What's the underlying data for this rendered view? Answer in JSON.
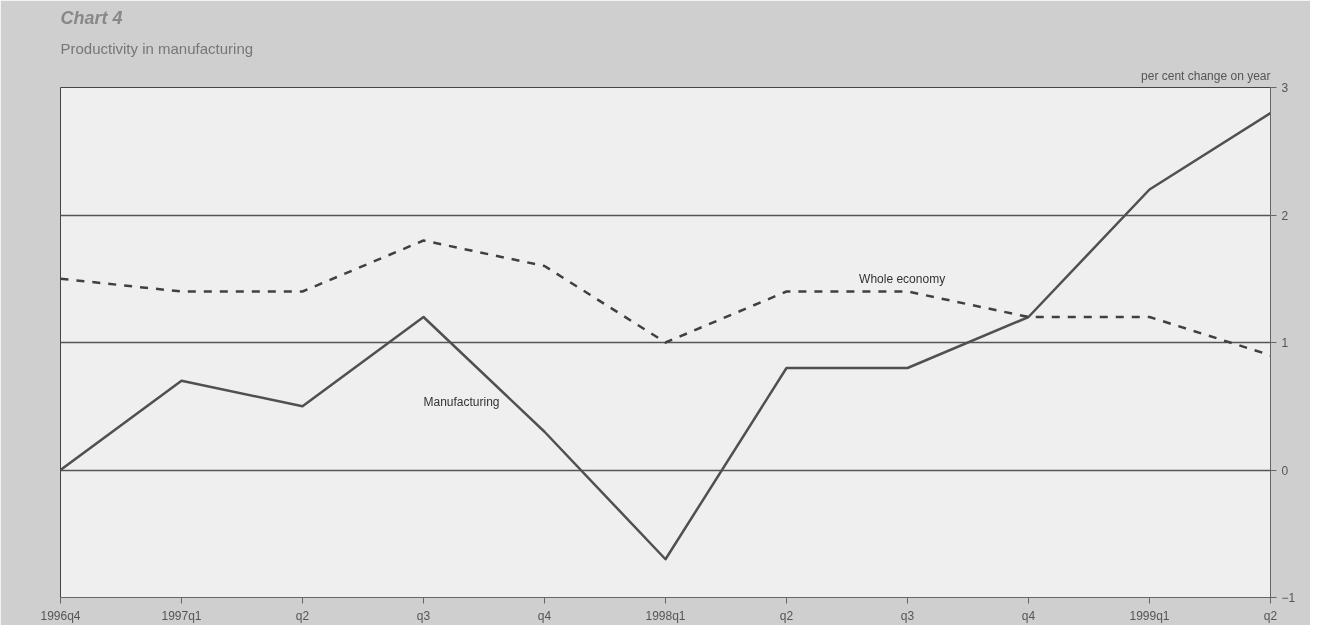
{
  "chart_data": {
    "type": "line",
    "title": "Chart 4",
    "subtitle": "Productivity in manufacturing",
    "ylabel": "per cent change on year",
    "categories": [
      "1996q4",
      "1997q1",
      "q2",
      "q3",
      "q4",
      "1998q1",
      "q2",
      "q3",
      "q4",
      "1999q1",
      "q2"
    ],
    "series": [
      {
        "name": "Manufacturing",
        "color": "#505050",
        "line_style": "solid",
        "values": [
          0,
          0.7,
          0.5,
          1.2,
          0.3,
          -0.7,
          0.8,
          0.8,
          1.2,
          2.2,
          2.8
        ]
      },
      {
        "name": "Whole economy",
        "color": "#404040",
        "line_style": "dashed",
        "values": [
          1.5,
          1.4,
          1.4,
          1.8,
          1.6,
          1.0,
          1.4,
          1.4,
          1.2,
          1.2,
          0.9
        ]
      }
    ],
    "ylim": [
      -1,
      3
    ],
    "yticks": [
      -1,
      0,
      1,
      2,
      3
    ],
    "grid": "y",
    "marker": "none"
  }
}
